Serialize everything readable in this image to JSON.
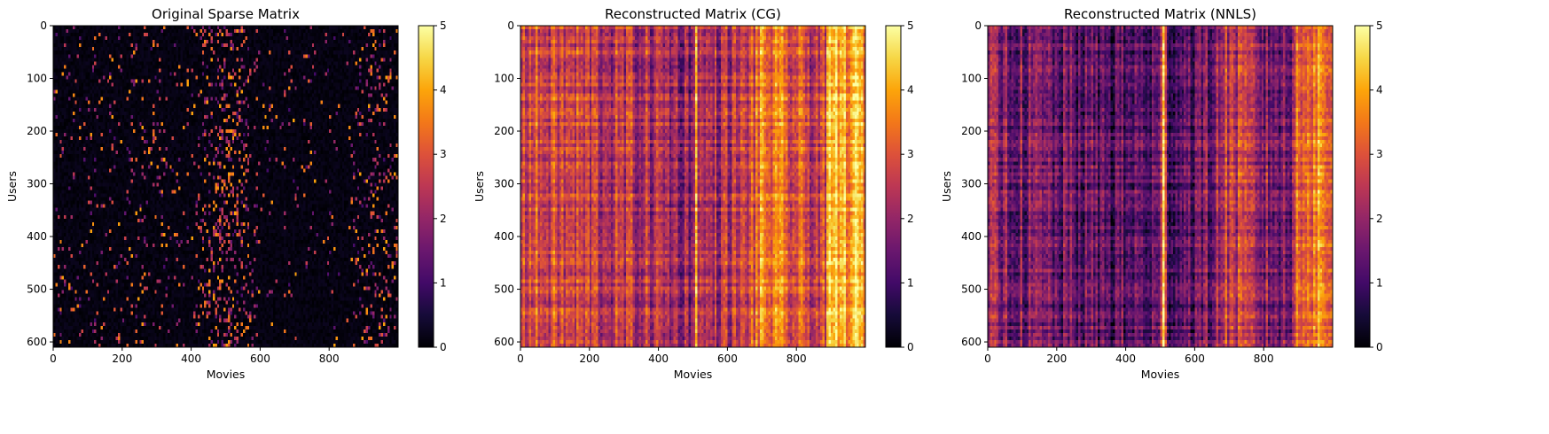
{
  "chart_data": [
    {
      "type": "heatmap",
      "title": "Original Sparse Matrix",
      "xlabel": "Movies",
      "ylabel": "Users",
      "xlim": [
        0,
        1000
      ],
      "ylim": [
        610,
        0
      ],
      "x_ticks": [
        "0",
        "200",
        "400",
        "600",
        "800"
      ],
      "y_ticks": [
        "0",
        "100",
        "200",
        "300",
        "400",
        "500",
        "600"
      ],
      "colorbar": {
        "min": 0,
        "max": 5,
        "ticks": [
          "0",
          "1",
          "2",
          "3",
          "4",
          "5"
        ],
        "colormap": "inferno"
      },
      "pattern": "sparse",
      "column_mean": [
        [
          0,
          0.2
        ],
        [
          100,
          0.25
        ],
        [
          200,
          0.3
        ],
        [
          300,
          0.35
        ],
        [
          400,
          0.2
        ],
        [
          500,
          1.6
        ],
        [
          600,
          0.2
        ],
        [
          700,
          0.15
        ],
        [
          850,
          0.1
        ],
        [
          900,
          0.8
        ],
        [
          1000,
          0.7
        ]
      ]
    },
    {
      "type": "heatmap",
      "title": "Reconstructed Matrix (CG)",
      "xlabel": "Movies",
      "ylabel": "Users",
      "xlim": [
        0,
        1000
      ],
      "ylim": [
        610,
        0
      ],
      "x_ticks": [
        "0",
        "200",
        "400",
        "600",
        "800"
      ],
      "y_ticks": [
        "0",
        "100",
        "200",
        "300",
        "400",
        "500",
        "600"
      ],
      "colorbar": {
        "min": 0,
        "max": 5,
        "ticks": [
          "0",
          "1",
          "2",
          "3",
          "4",
          "5"
        ],
        "colormap": "inferno"
      },
      "pattern": "dense",
      "column_mean": [
        [
          0,
          2.9
        ],
        [
          200,
          2.6
        ],
        [
          400,
          2.3
        ],
        [
          500,
          2.0
        ],
        [
          510,
          4.0
        ],
        [
          520,
          2.2
        ],
        [
          650,
          2.5
        ],
        [
          700,
          3.6
        ],
        [
          800,
          2.9
        ],
        [
          880,
          2.6
        ],
        [
          900,
          4.1
        ],
        [
          1000,
          4.0
        ]
      ]
    },
    {
      "type": "heatmap",
      "title": "Reconstructed Matrix (NNLS)",
      "xlabel": "Movies",
      "ylabel": "Users",
      "xlim": [
        0,
        1000
      ],
      "ylim": [
        610,
        0
      ],
      "x_ticks": [
        "0",
        "200",
        "400",
        "600",
        "800"
      ],
      "y_ticks": [
        "0",
        "100",
        "200",
        "300",
        "400",
        "500",
        "600"
      ],
      "colorbar": {
        "min": 0,
        "max": 5,
        "ticks": [
          "0",
          "1",
          "2",
          "3",
          "4",
          "5"
        ],
        "colormap": "inferno"
      },
      "pattern": "dense",
      "column_mean": [
        [
          0,
          1.9
        ],
        [
          200,
          1.4
        ],
        [
          400,
          1.2
        ],
        [
          500,
          1.3
        ],
        [
          510,
          4.2
        ],
        [
          520,
          1.3
        ],
        [
          650,
          1.6
        ],
        [
          700,
          2.7
        ],
        [
          800,
          1.8
        ],
        [
          880,
          1.5
        ],
        [
          900,
          3.6
        ],
        [
          1000,
          3.4
        ]
      ]
    }
  ]
}
